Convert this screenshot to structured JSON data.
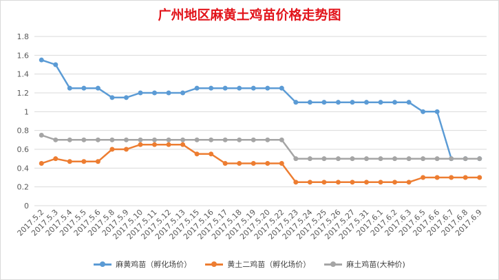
{
  "chart_data": {
    "type": "line",
    "title": "广州地区麻黄土鸡苗价格走势图",
    "xlabel": "",
    "ylabel": "",
    "ylim": [
      0,
      1.8
    ],
    "yticks": [
      "0",
      "0.2",
      "0.4",
      "0.6",
      "0.8",
      "1",
      "1.2",
      "1.4",
      "1.6",
      "1.8"
    ],
    "grid": true,
    "legend_position": "bottom",
    "categories": [
      "2017.5.2",
      "2017.5.3",
      "2017.5.4",
      "2017.5.5",
      "2017.5.6",
      "2017.5.8",
      "2017.5.9",
      "2017.5.10",
      "2017.5.11",
      "2017.5.12",
      "2017.5.13",
      "2017.5.15",
      "2017.5.16",
      "2017.5.17",
      "2017.5.18",
      "2017.5.19",
      "2017.5.20",
      "2017.5.22",
      "2017.5.23",
      "2017.5.24",
      "2017.5.25",
      "2017.5.26",
      "2017.5.27",
      "2017.5.31",
      "2017.6.1",
      "2017.6.2",
      "2017.6.3",
      "2017.6.5",
      "2017.6.6",
      "2017.6.7",
      "2017.6.8",
      "2017.6.9"
    ],
    "series": [
      {
        "name": "麻黄鸡苗（孵化场价）",
        "color": "#5b9bd5",
        "values": [
          1.55,
          1.5,
          1.25,
          1.25,
          1.25,
          1.15,
          1.15,
          1.2,
          1.2,
          1.2,
          1.2,
          1.25,
          1.25,
          1.25,
          1.25,
          1.25,
          1.25,
          1.25,
          1.1,
          1.1,
          1.1,
          1.1,
          1.1,
          1.1,
          1.1,
          1.1,
          1.1,
          1.0,
          1.0,
          0.5,
          0.5,
          0.5
        ]
      },
      {
        "name": "黄土二鸡苗（孵化场价）",
        "color": "#ed7d31",
        "values": [
          0.45,
          0.5,
          0.47,
          0.47,
          0.47,
          0.6,
          0.6,
          0.65,
          0.65,
          0.65,
          0.65,
          0.55,
          0.55,
          0.45,
          0.45,
          0.45,
          0.45,
          0.45,
          0.25,
          0.25,
          0.25,
          0.25,
          0.25,
          0.25,
          0.25,
          0.25,
          0.25,
          0.3,
          0.3,
          0.3,
          0.3,
          0.3
        ]
      },
      {
        "name": "麻土鸡苗(大种价)",
        "color": "#a5a5a5",
        "values": [
          0.75,
          0.7,
          0.7,
          0.7,
          0.7,
          0.7,
          0.7,
          0.7,
          0.7,
          0.7,
          0.7,
          0.7,
          0.7,
          0.7,
          0.7,
          0.7,
          0.7,
          0.7,
          0.5,
          0.5,
          0.5,
          0.5,
          0.5,
          0.5,
          0.5,
          0.5,
          0.5,
          0.5,
          0.5,
          0.5,
          0.5,
          0.5
        ]
      }
    ]
  }
}
